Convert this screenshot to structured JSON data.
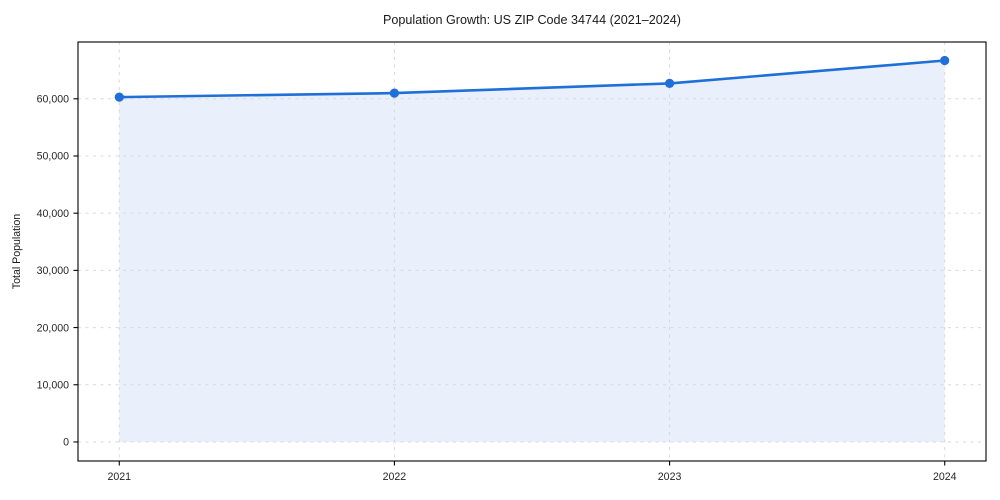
{
  "chart_data": {
    "type": "line",
    "title": "Population Growth: US ZIP Code 34744 (2021–2024)",
    "xlabel": "",
    "ylabel": "Total Population",
    "x": [
      2021,
      2022,
      2023,
      2024
    ],
    "series": [
      {
        "name": "Total Population",
        "values": [
          60300,
          61000,
          62700,
          66700
        ]
      }
    ],
    "xticks": [
      2021,
      2022,
      2023,
      2024
    ],
    "yticks": [
      0,
      10000,
      20000,
      30000,
      40000,
      50000,
      60000
    ],
    "xlim": [
      2020.85,
      2024.15
    ],
    "ylim": [
      -3330,
      69930
    ],
    "grid": true,
    "grid_style": "dashed",
    "legend": "none",
    "area_fill_to": 0,
    "colors": {
      "line": "#1f6fd8",
      "marker": "#1f6fd8",
      "area_fill": "#e9effb",
      "grid": "#d9d9d9",
      "spine": "#000000",
      "text": "#1a1a1a"
    }
  }
}
